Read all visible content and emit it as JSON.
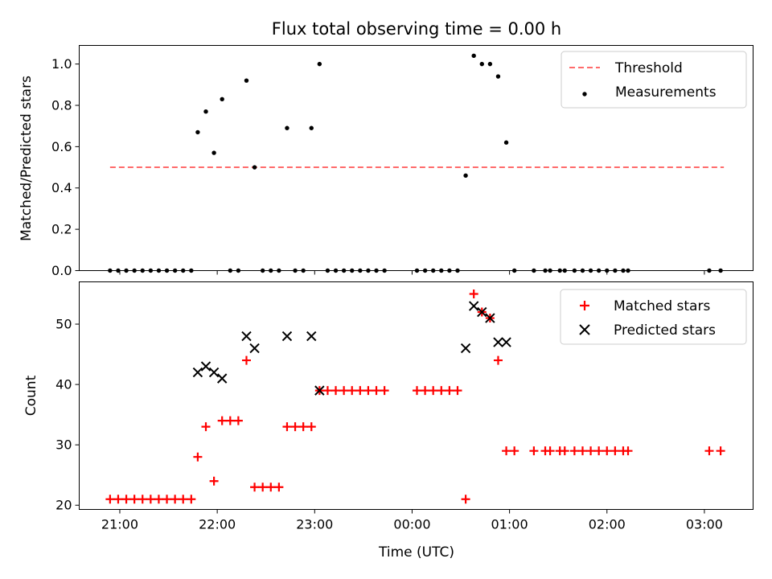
{
  "chart_data": [
    {
      "type": "scatter",
      "title": "Flux total observing time = 0.00 h",
      "ylabel": "Matched/Predicted stars",
      "xlabel": "",
      "ylim": [
        0,
        1.09
      ],
      "yticks": [
        "0.0",
        "0.2",
        "0.4",
        "0.6",
        "0.8",
        "1.0"
      ],
      "xlim": [
        "20:35",
        "03:30"
      ],
      "x_ticks": [
        "21:00",
        "22:00",
        "23:00",
        "00:00",
        "01:00",
        "02:00",
        "03:00"
      ],
      "legend_position": "top-right",
      "threshold": {
        "name": "Threshold",
        "y": 0.5,
        "x_start": "20:54",
        "x_end": "03:12",
        "color": "#ff6b6b"
      },
      "series": [
        {
          "name": "Measurements",
          "color": "#000000",
          "points": [
            [
              "20:54",
              0
            ],
            [
              "20:59",
              0
            ],
            [
              "21:04",
              0
            ],
            [
              "21:09",
              0
            ],
            [
              "21:14",
              0
            ],
            [
              "21:19",
              0
            ],
            [
              "21:24",
              0
            ],
            [
              "21:29",
              0
            ],
            [
              "21:34",
              0
            ],
            [
              "21:39",
              0
            ],
            [
              "21:44",
              0
            ],
            [
              "21:48",
              0.67
            ],
            [
              "21:53",
              0.77
            ],
            [
              "21:58",
              0.57
            ],
            [
              "22:03",
              0.83
            ],
            [
              "22:08",
              0
            ],
            [
              "22:13",
              0
            ],
            [
              "22:18",
              0.92
            ],
            [
              "22:23",
              0.5
            ],
            [
              "22:28",
              0
            ],
            [
              "22:33",
              0
            ],
            [
              "22:38",
              0
            ],
            [
              "22:43",
              0.69
            ],
            [
              "22:48",
              0
            ],
            [
              "22:53",
              0
            ],
            [
              "22:58",
              0.69
            ],
            [
              "23:03",
              1.0
            ],
            [
              "23:08",
              0
            ],
            [
              "23:13",
              0
            ],
            [
              "23:18",
              0
            ],
            [
              "23:23",
              0
            ],
            [
              "23:28",
              0
            ],
            [
              "23:33",
              0
            ],
            [
              "23:38",
              0
            ],
            [
              "23:43",
              0
            ],
            [
              "00:03",
              0
            ],
            [
              "00:08",
              0
            ],
            [
              "00:13",
              0
            ],
            [
              "00:18",
              0
            ],
            [
              "00:23",
              0
            ],
            [
              "00:28",
              0
            ],
            [
              "00:33",
              0.46
            ],
            [
              "00:38",
              1.04
            ],
            [
              "00:43",
              1.0
            ],
            [
              "00:48",
              1.0
            ],
            [
              "00:53",
              0.94
            ],
            [
              "00:58",
              0.62
            ],
            [
              "01:03",
              0
            ],
            [
              "01:15",
              0
            ],
            [
              "01:22",
              0
            ],
            [
              "01:25",
              0
            ],
            [
              "01:31",
              0
            ],
            [
              "01:34",
              0
            ],
            [
              "01:40",
              0
            ],
            [
              "01:45",
              0
            ],
            [
              "01:50",
              0
            ],
            [
              "01:55",
              0
            ],
            [
              "02:00",
              0
            ],
            [
              "02:05",
              0
            ],
            [
              "02:10",
              0
            ],
            [
              "02:13",
              0
            ],
            [
              "03:03",
              0
            ],
            [
              "03:10",
              0
            ]
          ]
        }
      ]
    },
    {
      "type": "scatter",
      "title": "",
      "ylabel": "Count",
      "xlabel": "Time (UTC)",
      "ylim": [
        19.3,
        57
      ],
      "yticks": [
        "20",
        "30",
        "40",
        "50"
      ],
      "xlim": [
        "20:35",
        "03:30"
      ],
      "x_ticks": [
        "21:00",
        "22:00",
        "23:00",
        "00:00",
        "01:00",
        "02:00",
        "03:00"
      ],
      "legend_position": "top-right",
      "series": [
        {
          "name": "Matched stars",
          "marker": "plus",
          "color": "#ff0000",
          "points": [
            [
              "20:54",
              21
            ],
            [
              "20:59",
              21
            ],
            [
              "21:04",
              21
            ],
            [
              "21:09",
              21
            ],
            [
              "21:14",
              21
            ],
            [
              "21:19",
              21
            ],
            [
              "21:24",
              21
            ],
            [
              "21:29",
              21
            ],
            [
              "21:34",
              21
            ],
            [
              "21:39",
              21
            ],
            [
              "21:44",
              21
            ],
            [
              "21:48",
              28
            ],
            [
              "21:53",
              33
            ],
            [
              "21:58",
              24
            ],
            [
              "22:03",
              34
            ],
            [
              "22:08",
              34
            ],
            [
              "22:13",
              34
            ],
            [
              "22:18",
              44
            ],
            [
              "22:23",
              23
            ],
            [
              "22:28",
              23
            ],
            [
              "22:33",
              23
            ],
            [
              "22:38",
              23
            ],
            [
              "22:43",
              33
            ],
            [
              "22:48",
              33
            ],
            [
              "22:53",
              33
            ],
            [
              "22:58",
              33
            ],
            [
              "23:03",
              39
            ],
            [
              "23:08",
              39
            ],
            [
              "23:13",
              39
            ],
            [
              "23:18",
              39
            ],
            [
              "23:23",
              39
            ],
            [
              "23:28",
              39
            ],
            [
              "23:33",
              39
            ],
            [
              "23:38",
              39
            ],
            [
              "23:43",
              39
            ],
            [
              "00:03",
              39
            ],
            [
              "00:08",
              39
            ],
            [
              "00:13",
              39
            ],
            [
              "00:18",
              39
            ],
            [
              "00:23",
              39
            ],
            [
              "00:28",
              39
            ],
            [
              "00:33",
              21
            ],
            [
              "00:38",
              55
            ],
            [
              "00:43",
              52
            ],
            [
              "00:48",
              51
            ],
            [
              "00:53",
              44
            ],
            [
              "00:58",
              29
            ],
            [
              "01:03",
              29
            ],
            [
              "01:15",
              29
            ],
            [
              "01:22",
              29
            ],
            [
              "01:25",
              29
            ],
            [
              "01:31",
              29
            ],
            [
              "01:34",
              29
            ],
            [
              "01:40",
              29
            ],
            [
              "01:45",
              29
            ],
            [
              "01:50",
              29
            ],
            [
              "01:55",
              29
            ],
            [
              "02:00",
              29
            ],
            [
              "02:05",
              29
            ],
            [
              "02:10",
              29
            ],
            [
              "02:13",
              29
            ],
            [
              "03:03",
              29
            ],
            [
              "03:10",
              29
            ]
          ]
        },
        {
          "name": "Predicted stars",
          "marker": "x",
          "color": "#000000",
          "points": [
            [
              "21:48",
              42
            ],
            [
              "21:53",
              43
            ],
            [
              "21:58",
              42
            ],
            [
              "22:03",
              41
            ],
            [
              "22:18",
              48
            ],
            [
              "22:23",
              46
            ],
            [
              "22:43",
              48
            ],
            [
              "22:58",
              48
            ],
            [
              "23:03",
              39
            ],
            [
              "00:33",
              46
            ],
            [
              "00:38",
              53
            ],
            [
              "00:43",
              52
            ],
            [
              "00:48",
              51
            ],
            [
              "00:53",
              47
            ],
            [
              "00:58",
              47
            ]
          ]
        }
      ]
    }
  ]
}
